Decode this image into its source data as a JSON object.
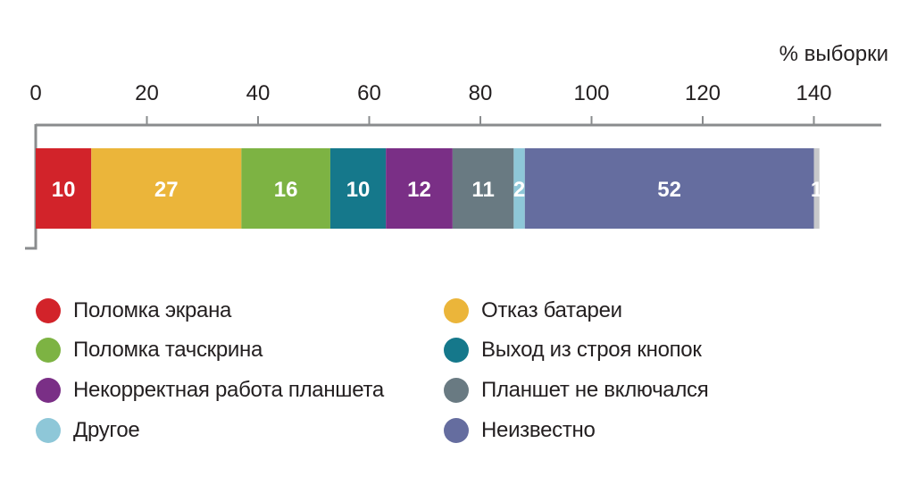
{
  "chart_data": {
    "type": "bar",
    "orientation": "horizontal-stacked",
    "unit_label": "% выборки",
    "xlim": [
      0,
      140
    ],
    "ticks": [
      0,
      20,
      40,
      60,
      80,
      100,
      120,
      140
    ],
    "grid": false,
    "legend_position": "bottom",
    "series": [
      {
        "name": "Поломка экрана",
        "value": 10,
        "label": "10",
        "color": "#d2232a"
      },
      {
        "name": "Отказ батареи",
        "value": 27,
        "label": "27",
        "color": "#ebb53a"
      },
      {
        "name": "Поломка тачскрина",
        "value": 16,
        "label": "16",
        "color": "#7db343"
      },
      {
        "name": "Выход из строя кнопок",
        "value": 10,
        "label": "10",
        "color": "#15788b"
      },
      {
        "name": "Некорректная работа планшета",
        "value": 12,
        "label": "12",
        "color": "#7a2f86"
      },
      {
        "name": "Планшет не включался",
        "value": 11,
        "label": "11",
        "color": "#697a82"
      },
      {
        "name": "Другое",
        "value": 2,
        "label": "2",
        "color": "#8ec7d8"
      },
      {
        "name": "Неизвестно",
        "value": 52,
        "label": "52",
        "color": "#656d9f"
      },
      {
        "name": "",
        "value": 1,
        "label": "1",
        "color": "#c7c8ca"
      }
    ]
  },
  "legend": [
    {
      "label": "Поломка экрана",
      "color": "#d2232a"
    },
    {
      "label": "Отказ батареи",
      "color": "#ebb53a"
    },
    {
      "label": "Поломка тачскрина",
      "color": "#7db343"
    },
    {
      "label": "Выход из строя кнопок",
      "color": "#15788b"
    },
    {
      "label": "Некорректная работа планшета",
      "color": "#7a2f86"
    },
    {
      "label": "Планшет не включался",
      "color": "#697a82"
    },
    {
      "label": "Другое",
      "color": "#8ec7d8"
    },
    {
      "label": "Неизвестно",
      "color": "#656d9f"
    }
  ]
}
